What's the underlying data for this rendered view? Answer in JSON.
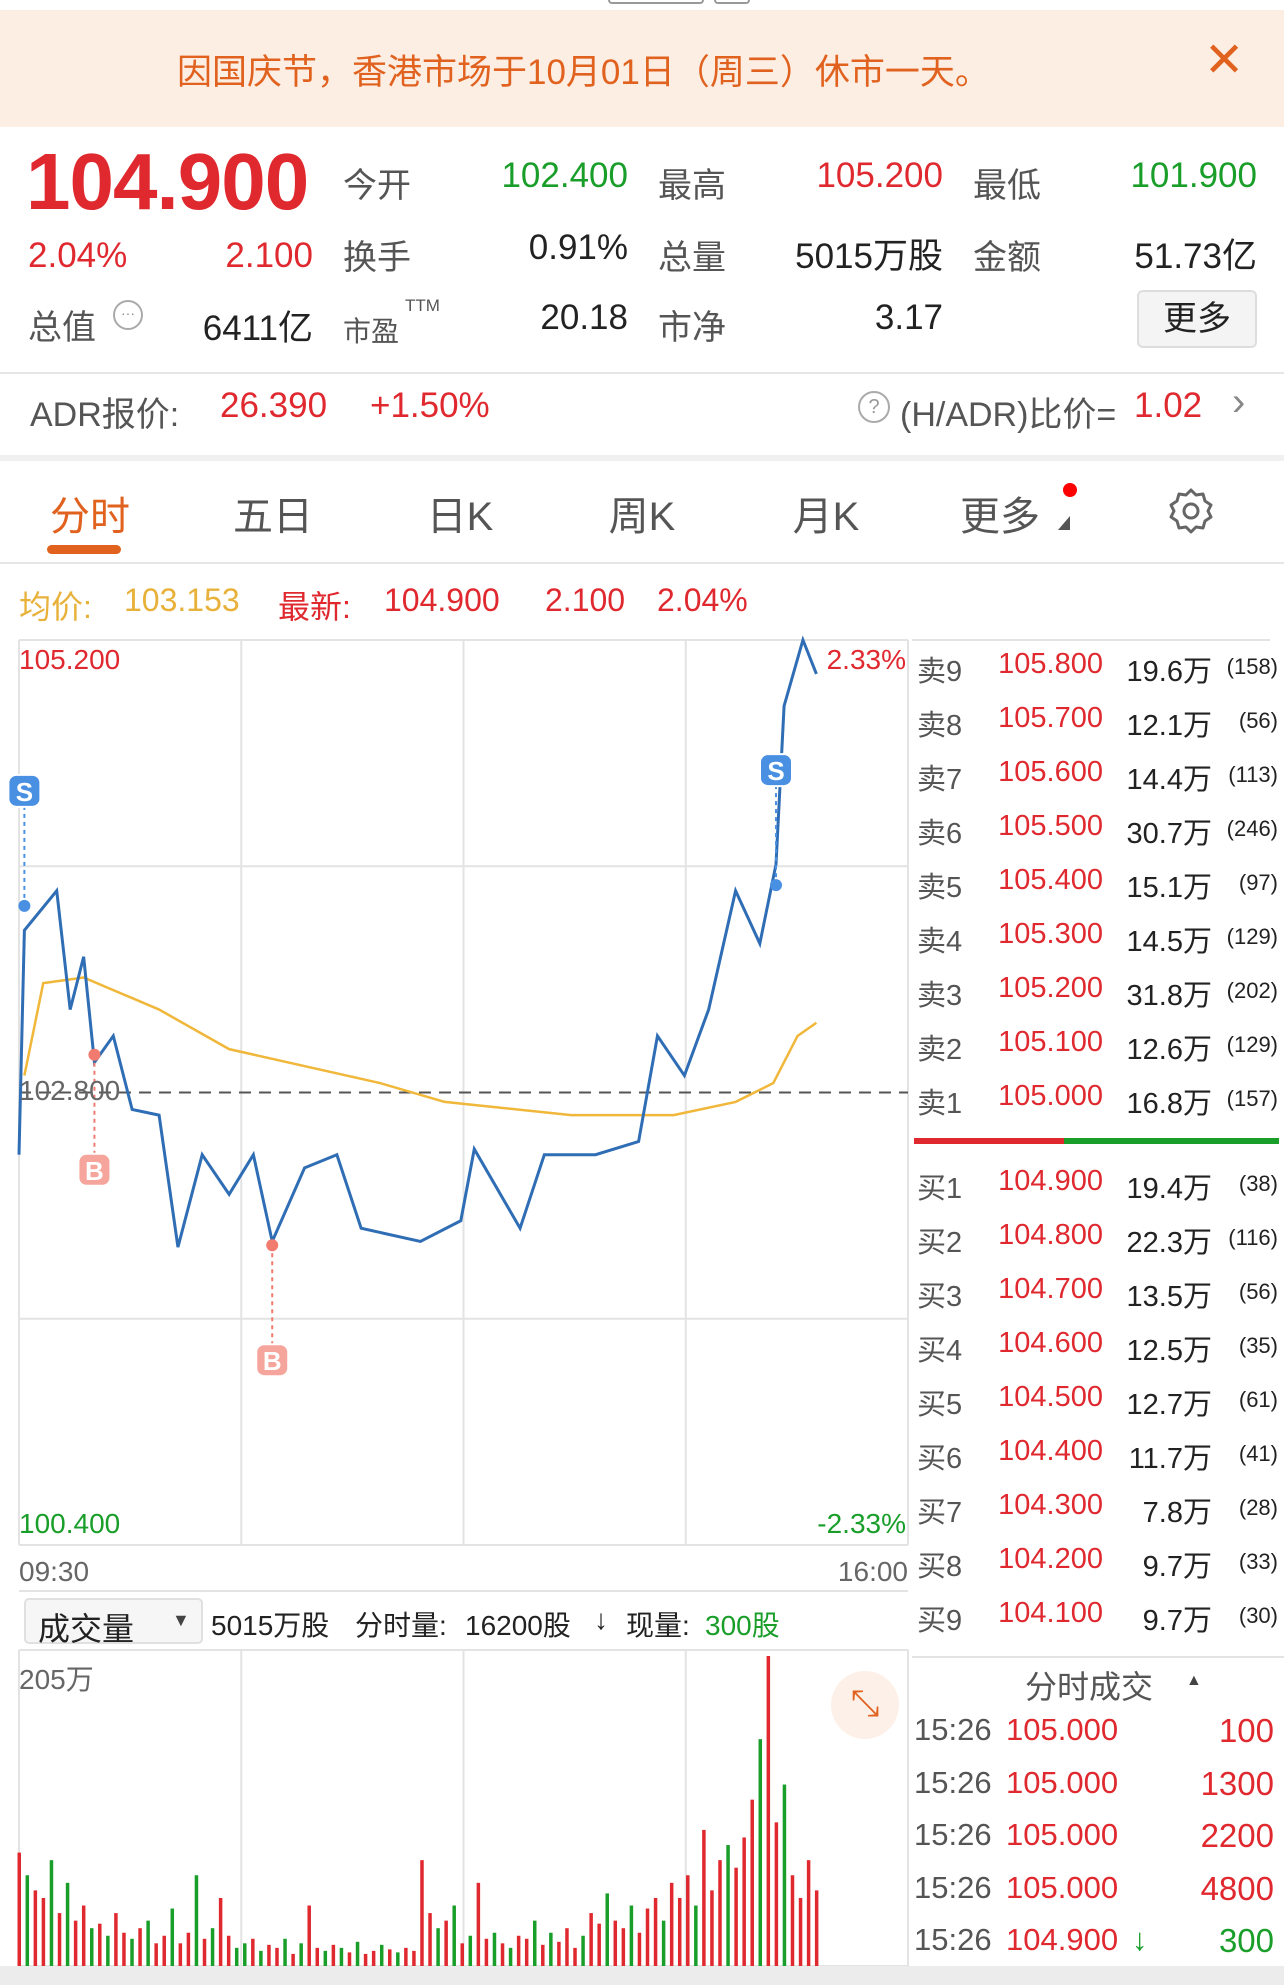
{
  "banner": {
    "text": "因国庆节，香港市场于10月01日（周三）休市一天。",
    "close_icon": "close-icon"
  },
  "quote": {
    "price": "104.900",
    "change_pct": "2.04%",
    "change": "2.100",
    "stats": [
      {
        "label": "今开",
        "value": "102.400",
        "color": "green"
      },
      {
        "label": "最高",
        "value": "105.200",
        "color": "red"
      },
      {
        "label": "最低",
        "value": "101.900",
        "color": "green"
      },
      {
        "label": "换手",
        "value": "0.91%",
        "color": "dark"
      },
      {
        "label": "总量",
        "value": "5015万股",
        "color": "dark"
      },
      {
        "label": "金额",
        "value": "51.73亿",
        "color": "dark"
      },
      {
        "label": "市盈",
        "sup": "TTM",
        "value": "20.18",
        "color": "dark"
      },
      {
        "label": "市净",
        "value": "3.17",
        "color": "dark"
      }
    ],
    "market_cap_label": "总值",
    "market_cap": "6411亿",
    "more_button": "更多"
  },
  "adr": {
    "label": "ADR报价:",
    "price": "26.390",
    "change": "+1.50%",
    "ratio_label": "(H/ADR)比价=",
    "ratio": "1.02"
  },
  "tabs": [
    {
      "label": "分时",
      "active": true
    },
    {
      "label": "五日"
    },
    {
      "label": "日K"
    },
    {
      "label": "周K"
    },
    {
      "label": "月K"
    },
    {
      "label": "更多"
    }
  ],
  "avg_row": {
    "avg_label": "均价:",
    "avg": "103.153",
    "latest_label": "最新:",
    "latest": "104.900",
    "change": "2.100",
    "pct": "2.04%"
  },
  "colors": {
    "up": "#e0282f",
    "down": "#1a9e2a",
    "price_line": "#2f6db5",
    "avg_line": "#f0b73a",
    "accent": "#e0621e"
  },
  "chart_data": {
    "type": "line",
    "ylim": [
      100.4,
      105.2
    ],
    "prev_close": 102.8,
    "y_labels": {
      "top": "105.200",
      "bottom": "100.400",
      "mid": "102.800",
      "top_pct": "2.33%",
      "bottom_pct": "-2.33%"
    },
    "x_labels": {
      "start": "09:30",
      "end": "16:00"
    },
    "price": [
      [
        "09:30",
        102.47
      ],
      [
        "09:32",
        103.66
      ],
      [
        "09:44",
        103.87
      ],
      [
        "09:49",
        103.24
      ],
      [
        "09:54",
        103.52
      ],
      [
        "09:58",
        102.96
      ],
      [
        "10:05",
        103.1
      ],
      [
        "10:12",
        102.71
      ],
      [
        "10:22",
        102.68
      ],
      [
        "10:29",
        101.98
      ],
      [
        "10:38",
        102.47
      ],
      [
        "10:48",
        102.26
      ],
      [
        "10:57",
        102.47
      ],
      [
        "11:04",
        102.01
      ],
      [
        "11:16",
        102.4
      ],
      [
        "11:28",
        102.47
      ],
      [
        "11:37",
        102.08
      ],
      [
        "11:59",
        102.01
      ],
      [
        "13:14",
        102.12
      ],
      [
        "13:19",
        102.5
      ],
      [
        "13:36",
        102.08
      ],
      [
        "13:45",
        102.47
      ],
      [
        "14:04",
        102.47
      ],
      [
        "14:20",
        102.54
      ],
      [
        "14:27",
        103.1
      ],
      [
        "14:37",
        102.89
      ],
      [
        "14:46",
        103.24
      ],
      [
        "14:56",
        103.87
      ],
      [
        "15:05",
        103.59
      ],
      [
        "15:11",
        104.01
      ],
      [
        "15:14",
        104.85
      ],
      [
        "15:21",
        105.2
      ],
      [
        "15:26",
        105.02
      ]
    ],
    "avg": [
      [
        "09:32",
        102.89
      ],
      [
        "09:39",
        103.38
      ],
      [
        "09:54",
        103.41
      ],
      [
        "10:22",
        103.24
      ],
      [
        "10:48",
        103.03
      ],
      [
        "11:44",
        102.85
      ],
      [
        "13:08",
        102.75
      ],
      [
        "13:55",
        102.68
      ],
      [
        "14:33",
        102.68
      ],
      [
        "14:56",
        102.75
      ],
      [
        "15:10",
        102.85
      ],
      [
        "15:19",
        103.1
      ],
      [
        "15:26",
        103.17
      ]
    ],
    "markers": [
      {
        "type": "S",
        "time": "09:32",
        "price": 103.79
      },
      {
        "type": "B",
        "time": "09:58",
        "price": 103.0
      },
      {
        "type": "B",
        "time": "11:04",
        "price": 101.99
      },
      {
        "type": "S",
        "time": "15:11",
        "price": 103.9
      }
    ],
    "volume": {
      "max_label": "205万",
      "max": 205,
      "values": [
        75,
        60,
        50,
        45,
        70,
        35,
        55,
        30,
        40,
        25,
        28,
        20,
        35,
        22,
        18,
        25,
        30,
        15,
        20,
        38,
        15,
        22,
        60,
        18,
        25,
        45,
        20,
        12,
        15,
        18,
        10,
        14,
        12,
        18,
        8,
        15,
        40,
        12,
        10,
        14,
        12,
        9,
        16,
        8,
        10,
        14,
        11,
        9,
        12,
        10,
        70,
        35,
        25,
        30,
        40,
        15,
        20,
        55,
        18,
        22,
        15,
        12,
        20,
        18,
        30,
        14,
        22,
        16,
        25,
        12,
        20,
        35,
        28,
        48,
        30,
        25,
        40,
        22,
        38,
        45,
        30,
        55,
        45,
        60,
        40,
        90,
        50,
        70,
        80,
        65,
        85,
        110,
        150,
        205,
        95,
        120,
        60,
        45,
        70,
        50
      ],
      "directions": "rgrrgrgrrgrgrrgrgrrgrrgrgrrggrgrrgrgrrgrgrgrrgrgrrrrgrgrgrrgrgrrgrgrrrgrrgrrgrrrgrrrgrrrgrrrgrrg"
    }
  },
  "volume_bar": {
    "selector": "成交量",
    "total": "5015万股",
    "period_label": "分时量:",
    "period": "16200股",
    "arrow": "↓",
    "current_label": "现量:",
    "current": "300股"
  },
  "order_book": {
    "asks": [
      [
        "卖9",
        "105.800",
        "19.6万",
        "(158)"
      ],
      [
        "卖8",
        "105.700",
        "12.1万",
        "(56)"
      ],
      [
        "卖7",
        "105.600",
        "14.4万",
        "(113)"
      ],
      [
        "卖6",
        "105.500",
        "30.7万",
        "(246)"
      ],
      [
        "卖5",
        "105.400",
        "15.1万",
        "(97)"
      ],
      [
        "卖4",
        "105.300",
        "14.5万",
        "(129)"
      ],
      [
        "卖3",
        "105.200",
        "31.8万",
        "(202)"
      ],
      [
        "卖2",
        "105.100",
        "12.6万",
        "(129)"
      ],
      [
        "卖1",
        "105.000",
        "16.8万",
        "(157)"
      ]
    ],
    "bids": [
      [
        "买1",
        "104.900",
        "19.4万",
        "(38)"
      ],
      [
        "买2",
        "104.800",
        "22.3万",
        "(116)"
      ],
      [
        "买3",
        "104.700",
        "13.5万",
        "(56)"
      ],
      [
        "买4",
        "104.600",
        "12.5万",
        "(35)"
      ],
      [
        "买5",
        "104.500",
        "12.7万",
        "(61)"
      ],
      [
        "买6",
        "104.400",
        "11.7万",
        "(41)"
      ],
      [
        "买7",
        "104.300",
        "7.8万",
        "(28)"
      ],
      [
        "买8",
        "104.200",
        "9.7万",
        "(33)"
      ],
      [
        "买9",
        "104.100",
        "9.7万",
        "(30)"
      ]
    ],
    "buy_ratio": 0.41
  },
  "trades": {
    "title": "分时成交",
    "rows": [
      [
        "15:26",
        "105.000",
        "",
        "100",
        "red"
      ],
      [
        "15:26",
        "105.000",
        "",
        "1300",
        "red"
      ],
      [
        "15:26",
        "105.000",
        "",
        "2200",
        "red"
      ],
      [
        "15:26",
        "105.000",
        "",
        "4800",
        "red"
      ],
      [
        "15:26",
        "104.900",
        "↓",
        "300",
        "green"
      ]
    ]
  }
}
